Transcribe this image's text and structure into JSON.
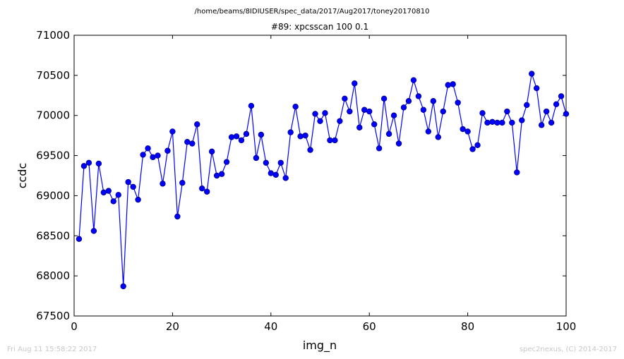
{
  "header": {
    "path": "/home/beams/8IDIUSER/spec_data/2017/Aug2017/toney20170810",
    "title": "#89: xpcsscan 100 0.1"
  },
  "footer": {
    "timestamp": "Fri Aug 11 15:58:22 2017",
    "credit": "spec2nexus, (C) 2014-2017"
  },
  "colors": {
    "series": "#0000ff",
    "marker_fill": "#0000ff",
    "marker_edge": "#000080"
  },
  "chart_data": {
    "type": "line",
    "title": "#89: xpcsscan 100 0.1",
    "xlabel": "img_n",
    "ylabel": "ccdc",
    "xlim": [
      0,
      100
    ],
    "ylim": [
      67500,
      71000
    ],
    "xticks": [
      "0",
      "20",
      "40",
      "60",
      "80",
      "100"
    ],
    "yticks": [
      "67500",
      "68000",
      "68500",
      "69000",
      "69500",
      "70000",
      "70500",
      "71000"
    ],
    "grid": false,
    "markers": "circle",
    "x": [
      1,
      2,
      3,
      4,
      5,
      6,
      7,
      8,
      9,
      10,
      11,
      12,
      13,
      14,
      15,
      16,
      17,
      18,
      19,
      20,
      21,
      22,
      23,
      24,
      25,
      26,
      27,
      28,
      29,
      30,
      31,
      32,
      33,
      34,
      35,
      36,
      37,
      38,
      39,
      40,
      41,
      42,
      43,
      44,
      45,
      46,
      47,
      48,
      49,
      50,
      51,
      52,
      53,
      54,
      55,
      56,
      57,
      58,
      59,
      60,
      61,
      62,
      63,
      64,
      65,
      66,
      67,
      68,
      69,
      70,
      71,
      72,
      73,
      74,
      75,
      76,
      77,
      78,
      79,
      80,
      81,
      82,
      83,
      84,
      85,
      86,
      87,
      88,
      89,
      90,
      91,
      92,
      93,
      94,
      95,
      96,
      97,
      98,
      99,
      100
    ],
    "y": [
      68460,
      69370,
      69410,
      68560,
      69400,
      69040,
      69060,
      68930,
      69010,
      67870,
      69170,
      69110,
      68950,
      69510,
      69590,
      69480,
      69500,
      69150,
      69560,
      69800,
      68740,
      69160,
      69670,
      69650,
      69890,
      69090,
      69050,
      69550,
      69250,
      69270,
      69420,
      69730,
      69740,
      69690,
      69770,
      70120,
      69470,
      69760,
      69410,
      69280,
      69260,
      69410,
      69220,
      69790,
      70110,
      69740,
      69750,
      69570,
      70020,
      69930,
      70030,
      69690,
      69690,
      69930,
      70210,
      70050,
      70400,
      69850,
      70070,
      70050,
      69890,
      69590,
      70210,
      69770,
      70000,
      69650,
      70100,
      70180,
      70440,
      70240,
      70070,
      69800,
      70180,
      69730,
      70050,
      70380,
      70390,
      70160,
      69830,
      69800,
      69580,
      69630,
      70030,
      69910,
      69920,
      69910,
      69910,
      70050,
      69910,
      69290,
      69940,
      70130,
      70520,
      70340,
      69880,
      70050,
      69910,
      70140,
      70240,
      70020
    ]
  }
}
